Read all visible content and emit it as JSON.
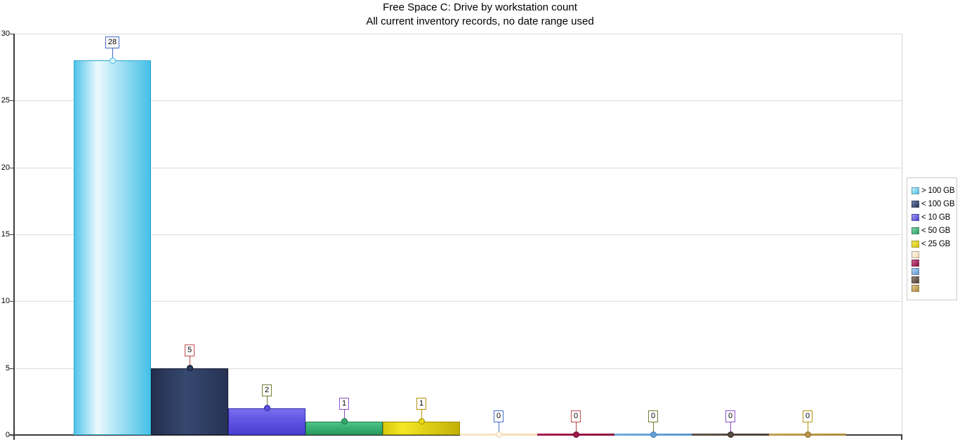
{
  "chart_data": {
    "type": "bar",
    "title": "Free Space C: Drive by workstation count",
    "subtitle": "All current inventory records, no date range used",
    "categories": [
      "> 100 GB",
      "< 100 GB",
      "< 10 GB",
      "< 50 GB",
      "< 25 GB",
      "",
      "",
      "",
      "",
      ""
    ],
    "values": [
      28,
      5,
      2,
      1,
      1,
      0,
      0,
      0,
      0,
      0
    ],
    "xlabel": "",
    "ylabel": "",
    "ylim": [
      0,
      30
    ],
    "yticks": [
      0,
      5,
      10,
      15,
      20,
      25,
      30
    ],
    "grid": true,
    "legend_position": "right",
    "axis_color": "#3C3C3C",
    "gridline_color": "#DCDCDC",
    "callout_palette": [
      "#4169C8",
      "#B94B49",
      "#6F7B2D",
      "#8A4FC8",
      "#B3920E"
    ],
    "series": [
      {
        "label": "> 100 GB",
        "value": 28,
        "colors": {
          "stops": [
            "#4FC4EA",
            "#ECFAFE",
            "#45C0E7"
          ],
          "stop_pos": 30,
          "dir": 90,
          "border": "#2EA6D0",
          "marker_fill": "#D7F3FB",
          "marker_border": "#44BBE2"
        }
      },
      {
        "label": "< 100 GB",
        "value": 5,
        "colors": {
          "stops": [
            "#242E4B",
            "#364870",
            "#273254"
          ],
          "stop_pos": 45,
          "dir": 90,
          "border": "#141C30",
          "marker_fill": "#2C3A5C",
          "marker_border": "#10182A"
        }
      },
      {
        "label": "< 10 GB",
        "value": 2,
        "colors": {
          "stops": [
            "#7A71ED",
            "#6359E6",
            "#4A3FD2"
          ],
          "stop_pos": 35,
          "dir": 180,
          "border": "#3329AC",
          "marker_fill": "#5A50E0",
          "marker_border": "#2F26A0"
        }
      },
      {
        "label": "< 50 GB",
        "value": 1,
        "colors": {
          "stops": [
            "#4FC489",
            "#3BB275",
            "#2B9A5F"
          ],
          "stop_pos": 40,
          "dir": 180,
          "border": "#1B7846",
          "marker_fill": "#35A96C",
          "marker_border": "#156B3D"
        }
      },
      {
        "label": "< 25 GB",
        "value": 1,
        "colors": {
          "stops": [
            "#D9C90F",
            "#F3E723",
            "#C3B106"
          ],
          "stop_pos": 25,
          "dir": 90,
          "border": "#9C8C00",
          "marker_fill": "#E8D714",
          "marker_border": "#A08F03"
        }
      },
      {
        "label": "",
        "value": 0,
        "colors": {
          "stops": [
            "#F9E7C6",
            "#F7E2BD",
            "#F4DCB2"
          ],
          "stop_pos": 50,
          "dir": 90,
          "border": "#EFD3A4",
          "marker_fill": "#FDF7EA",
          "marker_border": "#F2CFA0"
        }
      },
      {
        "label": "",
        "value": 0,
        "colors": {
          "stops": [
            "#A81C50",
            "#9E1648",
            "#8E1040"
          ],
          "stop_pos": 50,
          "dir": 90,
          "border": "#70092F",
          "marker_fill": "#A01A4B",
          "marker_border": "#660A2C"
        }
      },
      {
        "label": "",
        "value": 0,
        "colors": {
          "stops": [
            "#6FAADF",
            "#64A0D8",
            "#5896D2"
          ],
          "stop_pos": 50,
          "dir": 90,
          "border": "#3F7CB8",
          "marker_fill": "#66A2DA",
          "marker_border": "#3A76B2"
        }
      },
      {
        "label": "",
        "value": 0,
        "colors": {
          "stops": [
            "#5E5145",
            "#564A3E",
            "#4E4237"
          ],
          "stop_pos": 50,
          "dir": 90,
          "border": "#352C24",
          "marker_fill": "#584C40",
          "marker_border": "#2F2720"
        }
      },
      {
        "label": "",
        "value": 0,
        "colors": {
          "stops": [
            "#C19E50",
            "#B79446",
            "#AE8A3C"
          ],
          "stop_pos": 50,
          "dir": 90,
          "border": "#8E6F2A",
          "marker_fill": "#BA9648",
          "marker_border": "#866826"
        }
      }
    ],
    "legend": [
      {
        "label": "> 100 GB",
        "swatch": [
          "#C9EFFA",
          "#49C1E8"
        ]
      },
      {
        "label": "< 100 GB",
        "swatch": [
          "#7487B0",
          "#243050"
        ]
      },
      {
        "label": "< 10 GB",
        "swatch": [
          "#A29BF4",
          "#4C41D6"
        ]
      },
      {
        "label": "< 50 GB",
        "swatch": [
          "#82D6AB",
          "#2F9C64"
        ]
      },
      {
        "label": "< 25 GB",
        "swatch": [
          "#F5EC5E",
          "#D5C30A"
        ]
      },
      {
        "label": "",
        "swatch": [
          "#FEF8EC",
          "#F2D9AE"
        ]
      },
      {
        "label": "",
        "swatch": [
          "#CE6590",
          "#8E1040"
        ]
      },
      {
        "label": "",
        "swatch": [
          "#BBD8F2",
          "#5896D2"
        ]
      },
      {
        "label": "",
        "swatch": [
          "#998B7D",
          "#4E4237"
        ]
      },
      {
        "label": "",
        "swatch": [
          "#E0CA90",
          "#AE8A3C"
        ]
      }
    ]
  }
}
